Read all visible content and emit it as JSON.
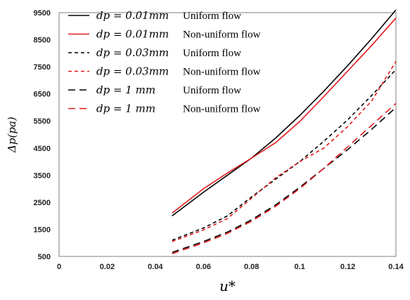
{
  "chart_data": {
    "type": "line",
    "xlabel": "u*",
    "ylabel": "Δp(pa)",
    "xlim": [
      0,
      0.14
    ],
    "ylim": [
      500,
      9500
    ],
    "x_ticks": [
      "0",
      "0.02",
      "0.04",
      "0.06",
      "0.08",
      "0.1",
      "0.12",
      "0.14"
    ],
    "y_ticks": [
      "500",
      "1500",
      "2500",
      "3500",
      "4500",
      "5500",
      "6500",
      "7500",
      "8500",
      "9500"
    ],
    "grid": false,
    "legend_position": "top-left",
    "series": [
      {
        "name": "d_p = 0.01mm  Uniform flow",
        "legend_math": "dp = 0.01mm",
        "legend_label": "Uniform flow",
        "color": "#000000",
        "dash": "solid",
        "x": [
          0.047,
          0.06,
          0.07,
          0.08,
          0.09,
          0.1,
          0.11,
          0.12,
          0.13,
          0.14
        ],
        "y": [
          2000,
          2870,
          3500,
          4130,
          4870,
          5700,
          6600,
          7550,
          8550,
          9600
        ]
      },
      {
        "name": "d_p = 0.01mm  Non-uniform flow",
        "legend_math": "dp = 0.01mm",
        "legend_label": "Non-uniform flow",
        "color": "#e31a1c",
        "dash": "solid",
        "x": [
          0.047,
          0.06,
          0.07,
          0.08,
          0.09,
          0.1,
          0.11,
          0.12,
          0.13,
          0.14
        ],
        "y": [
          2100,
          3000,
          3580,
          4130,
          4700,
          5480,
          6400,
          7350,
          8300,
          9300
        ]
      },
      {
        "name": "d_p = 0.03mm  Uniform flow",
        "legend_math": "dp = 0.03mm",
        "legend_label": "Uniform flow",
        "color": "#000000",
        "dash": "short",
        "x": [
          0.047,
          0.06,
          0.07,
          0.08,
          0.09,
          0.1,
          0.11,
          0.12,
          0.13,
          0.14
        ],
        "y": [
          1100,
          1550,
          2000,
          2700,
          3350,
          4000,
          4750,
          5550,
          6450,
          7400
        ]
      },
      {
        "name": "d_p = 0.03mm  Non-uniform flow",
        "legend_math": "dp = 0.03mm",
        "legend_label": "Non-uniform flow",
        "color": "#e31a1c",
        "dash": "short",
        "x": [
          0.047,
          0.06,
          0.07,
          0.08,
          0.09,
          0.1,
          0.11,
          0.12,
          0.13,
          0.14
        ],
        "y": [
          1050,
          1480,
          1900,
          2650,
          3400,
          4000,
          4500,
          5300,
          6250,
          7700
        ]
      },
      {
        "name": "d_p = 1 mm  Uniform flow",
        "legend_math": "dp = 1 mm",
        "legend_label": "Uniform flow",
        "color": "#000000",
        "dash": "long",
        "x": [
          0.047,
          0.06,
          0.07,
          0.08,
          0.09,
          0.1,
          0.11,
          0.12,
          0.13,
          0.14
        ],
        "y": [
          650,
          1050,
          1400,
          1850,
          2400,
          3050,
          3750,
          4450,
          5200,
          6000
        ]
      },
      {
        "name": "d_p = 1 mm  Non-uniform flow",
        "legend_math": "dp = 1 mm",
        "legend_label": "Non-uniform flow",
        "color": "#e31a1c",
        "dash": "long",
        "x": [
          0.047,
          0.06,
          0.07,
          0.08,
          0.09,
          0.1,
          0.11,
          0.12,
          0.13,
          0.14
        ],
        "y": [
          600,
          1000,
          1350,
          1800,
          2350,
          3000,
          3750,
          4550,
          5350,
          6150
        ]
      }
    ]
  }
}
